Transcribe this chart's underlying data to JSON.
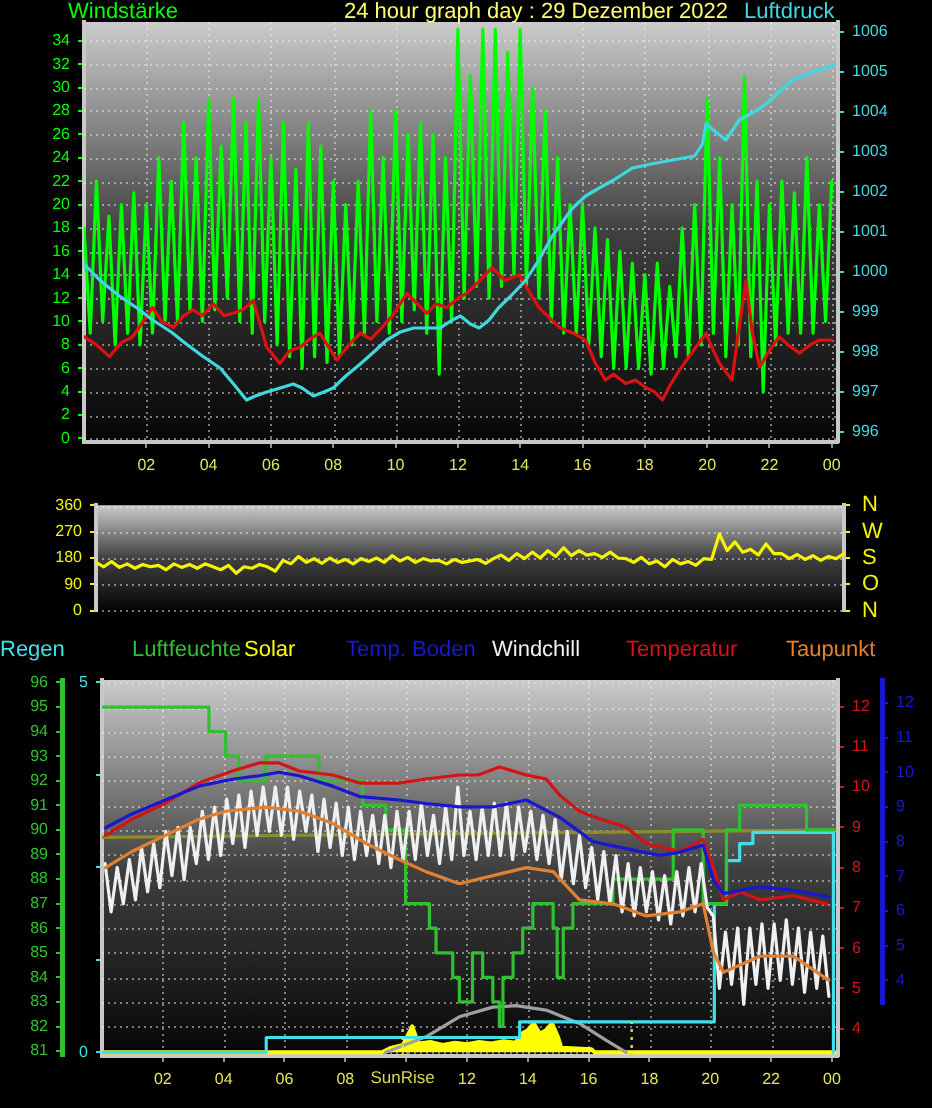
{
  "chart_data": [
    {
      "type": "line",
      "title": "24 hour graph day : 29 Dezember 2022",
      "ylabel": "Windstärke",
      "y2label": "Luftdruck",
      "xlim": [
        "2022-12-29T00:00",
        "2022-12-30T00:12"
      ],
      "xticks": [
        {
          "value": "2022-12-29T02:00",
          "label": "02"
        },
        {
          "value": "2022-12-29T04:00",
          "label": "04"
        },
        {
          "value": "2022-12-29T06:00",
          "label": "06"
        },
        {
          "value": "2022-12-29T08:00",
          "label": "08"
        },
        {
          "value": "2022-12-29T10:00",
          "label": "10"
        },
        {
          "value": "2022-12-29T12:00",
          "label": "12"
        },
        {
          "value": "2022-12-29T14:00",
          "label": "14"
        },
        {
          "value": "2022-12-29T16:00",
          "label": "16"
        },
        {
          "value": "2022-12-29T18:00",
          "label": "18"
        },
        {
          "value": "2022-12-29T20:00",
          "label": "20"
        },
        {
          "value": "2022-12-29T22:00",
          "label": "22"
        },
        {
          "value": "2022-12-30T00:00",
          "label": "00"
        }
      ],
      "ylim": [
        -0.3,
        35.6
      ],
      "yticks": [
        0,
        2,
        4,
        6,
        8,
        10,
        12,
        14,
        16,
        18,
        20,
        22,
        24,
        26,
        28,
        30,
        32,
        34
      ],
      "y2lim": [
        995.75,
        1006.25
      ],
      "y2ticks": [
        996,
        997,
        998,
        999,
        1000,
        1001,
        1002,
        1003,
        1004,
        1005,
        1006
      ],
      "grid": true,
      "marker": "none",
      "series": [
        {
          "color": "#00ff00",
          "x": [
            "2022-12-29T00:00",
            "2022-12-29T00:12",
            "2022-12-29T00:24",
            "2022-12-29T00:36",
            "2022-12-29T00:48",
            "2022-12-29T01:00",
            "2022-12-29T01:12",
            "2022-12-29T01:24",
            "2022-12-29T01:36",
            "2022-12-29T01:48",
            "2022-12-29T02:00",
            "2022-12-29T02:12",
            "2022-12-29T02:24",
            "2022-12-29T02:36",
            "2022-12-29T02:48",
            "2022-12-29T03:00",
            "2022-12-29T03:12",
            "2022-12-29T03:24",
            "2022-12-29T03:36",
            "2022-12-29T03:48",
            "2022-12-29T04:00",
            "2022-12-29T04:12",
            "2022-12-29T04:24",
            "2022-12-29T04:36",
            "2022-12-29T04:48",
            "2022-12-29T05:00",
            "2022-12-29T05:12",
            "2022-12-29T05:24",
            "2022-12-29T05:36",
            "2022-12-29T05:48",
            "2022-12-29T06:00",
            "2022-12-29T06:12",
            "2022-12-29T06:24",
            "2022-12-29T06:36",
            "2022-12-29T06:48",
            "2022-12-29T07:00",
            "2022-12-29T07:12",
            "2022-12-29T07:24",
            "2022-12-29T07:36",
            "2022-12-29T07:48",
            "2022-12-29T08:00",
            "2022-12-29T08:12",
            "2022-12-29T08:24",
            "2022-12-29T08:36",
            "2022-12-29T08:48",
            "2022-12-29T09:00",
            "2022-12-29T09:12",
            "2022-12-29T09:24",
            "2022-12-29T09:36",
            "2022-12-29T09:48",
            "2022-12-29T10:00",
            "2022-12-29T10:12",
            "2022-12-29T10:24",
            "2022-12-29T10:36",
            "2022-12-29T10:48",
            "2022-12-29T11:00",
            "2022-12-29T11:12",
            "2022-12-29T11:24",
            "2022-12-29T11:36",
            "2022-12-29T11:48",
            "2022-12-29T12:00",
            "2022-12-29T12:12",
            "2022-12-29T12:24",
            "2022-12-29T12:36",
            "2022-12-29T12:48",
            "2022-12-29T13:00",
            "2022-12-29T13:12",
            "2022-12-29T13:24",
            "2022-12-29T13:36",
            "2022-12-29T13:48",
            "2022-12-29T14:00",
            "2022-12-29T14:12",
            "2022-12-29T14:24",
            "2022-12-29T14:36",
            "2022-12-29T14:48",
            "2022-12-29T15:00",
            "2022-12-29T15:12",
            "2022-12-29T15:24",
            "2022-12-29T15:36",
            "2022-12-29T15:48",
            "2022-12-29T16:00",
            "2022-12-29T16:12",
            "2022-12-29T16:24",
            "2022-12-29T16:36",
            "2022-12-29T16:48",
            "2022-12-29T17:00",
            "2022-12-29T17:12",
            "2022-12-29T17:24",
            "2022-12-29T17:36",
            "2022-12-29T17:48",
            "2022-12-29T18:00",
            "2022-12-29T18:12",
            "2022-12-29T18:24",
            "2022-12-29T18:36",
            "2022-12-29T18:48",
            "2022-12-29T19:00",
            "2022-12-29T19:12",
            "2022-12-29T19:24",
            "2022-12-29T19:36",
            "2022-12-29T19:48",
            "2022-12-29T20:00",
            "2022-12-29T20:12",
            "2022-12-29T20:24",
            "2022-12-29T20:36",
            "2022-12-29T20:48",
            "2022-12-29T21:00",
            "2022-12-29T21:12",
            "2022-12-29T21:24",
            "2022-12-29T21:36",
            "2022-12-29T21:48",
            "2022-12-29T22:00",
            "2022-12-29T22:12",
            "2022-12-29T22:24",
            "2022-12-29T22:36",
            "2022-12-29T22:48",
            "2022-12-29T23:00",
            "2022-12-29T23:12",
            "2022-12-29T23:24",
            "2022-12-29T23:36",
            "2022-12-29T23:48",
            "2022-12-30T00:00"
          ],
          "values": [
            18,
            9,
            22,
            10,
            19,
            8,
            20,
            9,
            21,
            8,
            20,
            9,
            24,
            10,
            22,
            10,
            27,
            11,
            24,
            10,
            29,
            11,
            25,
            12,
            29,
            10,
            27,
            9,
            29,
            10,
            24,
            8,
            27,
            7,
            23,
            6,
            27,
            7,
            25,
            6.5,
            22,
            7,
            20,
            8,
            22,
            9,
            28,
            10,
            24,
            9,
            28,
            10,
            26,
            11,
            27,
            9,
            26,
            5.5,
            24,
            10,
            35,
            12,
            31,
            13,
            35,
            12,
            35,
            13,
            33,
            14,
            35,
            13,
            30,
            12,
            28,
            10,
            24,
            9,
            20,
            9,
            20,
            8,
            18,
            7,
            17,
            6,
            16,
            6,
            15,
            6,
            14,
            5.5,
            15,
            6,
            13,
            7,
            18,
            7,
            20,
            8,
            29,
            9,
            24,
            7,
            20,
            8,
            31,
            7,
            22,
            4,
            20,
            8,
            22,
            9,
            21,
            9,
            24,
            9,
            20,
            10,
            22
          ]
        },
        {
          "color": "#dd1111",
          "x": [
            "2022-12-29T00:00",
            "2022-12-29T00:24",
            "2022-12-29T00:49",
            "2022-12-29T01:12",
            "2022-12-29T01:34",
            "2022-12-29T01:54",
            "2022-12-29T02:12",
            "2022-12-29T02:30",
            "2022-12-29T02:52",
            "2022-12-29T03:12",
            "2022-12-29T03:30",
            "2022-12-29T03:48",
            "2022-12-29T04:09",
            "2022-12-29T04:30",
            "2022-12-29T04:47",
            "2022-12-29T05:06",
            "2022-12-29T05:26",
            "2022-12-29T05:52",
            "2022-12-29T06:17",
            "2022-12-29T06:36",
            "2022-12-29T06:56",
            "2022-12-29T07:15",
            "2022-12-29T07:34",
            "2022-12-29T08:07",
            "2022-12-29T08:30",
            "2022-12-29T08:52",
            "2022-12-29T09:12",
            "2022-12-29T09:30",
            "2022-12-29T09:54",
            "2022-12-29T10:22",
            "2022-12-29T10:42",
            "2022-12-29T11:00",
            "2022-12-29T11:18",
            "2022-12-29T11:39",
            "2022-12-29T12:00",
            "2022-12-29T12:17",
            "2022-12-29T12:42",
            "2022-12-29T13:06",
            "2022-12-29T13:30",
            "2022-12-29T13:58",
            "2022-12-29T14:18",
            "2022-12-29T14:36",
            "2022-12-29T15:15",
            "2022-12-29T15:42",
            "2022-12-29T16:06",
            "2022-12-29T16:24",
            "2022-12-29T16:44",
            "2022-12-29T17:00",
            "2022-12-29T17:23",
            "2022-12-29T17:42",
            "2022-12-29T18:00",
            "2022-12-29T18:18",
            "2022-12-29T18:34",
            "2022-12-29T18:48",
            "2022-12-29T19:06",
            "2022-12-29T19:30",
            "2022-12-29T19:58",
            "2022-12-29T20:12",
            "2022-12-29T20:24",
            "2022-12-29T20:48",
            "2022-12-29T21:00",
            "2022-12-29T21:15",
            "2022-12-29T21:27",
            "2022-12-29T21:41",
            "2022-12-29T22:00",
            "2022-12-29T22:18",
            "2022-12-29T22:36",
            "2022-12-29T22:58",
            "2022-12-29T23:18",
            "2022-12-29T23:36",
            "2022-12-30T00:00"
          ],
          "values": [
            8.7,
            8,
            7,
            8.2,
            8.7,
            10,
            11.2,
            10,
            9.5,
            10.5,
            11,
            10.5,
            11.5,
            10.5,
            10.7,
            11,
            11.8,
            7.8,
            6.4,
            7.5,
            7.8,
            8.5,
            9,
            6.7,
            8,
            9,
            8.5,
            9.3,
            10.5,
            12.4,
            11.5,
            10.7,
            11.5,
            11.2,
            12,
            12.4,
            13.5,
            14.6,
            13.5,
            14,
            12.5,
            11.2,
            9.5,
            9,
            8.4,
            6.5,
            5,
            5.5,
            4.7,
            5,
            4.4,
            4,
            3.3,
            4.5,
            5.8,
            7.3,
            9,
            7.5,
            6.4,
            5,
            9,
            13.5,
            9,
            6.1,
            7.5,
            8.7,
            8,
            7.3,
            8,
            8.4,
            8.4
          ]
        },
        {
          "color": "#40d8e0",
          "axis": "y2",
          "x": [
            "2022-12-29T00:00",
            "2022-12-29T00:30",
            "2022-12-29T01:08",
            "2022-12-29T01:42",
            "2022-12-29T02:12",
            "2022-12-29T02:48",
            "2022-12-29T03:17",
            "2022-12-29T03:48",
            "2022-12-29T04:22",
            "2022-12-29T04:48",
            "2022-12-29T05:13",
            "2022-12-29T05:30",
            "2022-12-29T05:52",
            "2022-12-29T06:18",
            "2022-12-29T06:43",
            "2022-12-29T07:00",
            "2022-12-29T07:22",
            "2022-12-29T07:42",
            "2022-12-29T08:00",
            "2022-12-29T08:24",
            "2022-12-29T08:52",
            "2022-12-29T09:18",
            "2022-12-29T09:43",
            "2022-12-29T10:09",
            "2022-12-29T10:35",
            "2022-12-29T11:00",
            "2022-12-29T11:26",
            "2022-12-29T11:49",
            "2022-12-29T12:05",
            "2022-12-29T12:24",
            "2022-12-29T12:41",
            "2022-12-29T13:00",
            "2022-12-29T13:18",
            "2022-12-29T13:42",
            "2022-12-29T14:11",
            "2022-12-29T14:36",
            "2022-12-29T15:02",
            "2022-12-29T15:24",
            "2022-12-29T15:41",
            "2022-12-29T16:06",
            "2022-12-29T16:32",
            "2022-12-29T17:00",
            "2022-12-29T17:36",
            "2022-12-29T18:12",
            "2022-12-29T18:54",
            "2022-12-29T19:36",
            "2022-12-29T19:51",
            "2022-12-29T19:58",
            "2022-12-29T20:17",
            "2022-12-29T20:36",
            "2022-12-29T21:02",
            "2022-12-29T21:30",
            "2022-12-29T21:54",
            "2022-12-29T22:18",
            "2022-12-29T22:45",
            "2022-12-29T23:24",
            "2022-12-29T23:48",
            "2022-12-30T00:06"
          ],
          "values": [
            1000.2,
            999.8,
            999.4,
            999.1,
            998.8,
            998.5,
            998.2,
            997.9,
            997.6,
            997.2,
            996.8,
            996.9,
            997,
            997.1,
            997.2,
            997.1,
            996.9,
            997,
            997.1,
            997.4,
            997.7,
            998,
            998.3,
            998.5,
            998.6,
            998.6,
            998.6,
            998.8,
            998.9,
            998.7,
            998.6,
            998.8,
            999.1,
            999.4,
            999.8,
            1000.3,
            1000.9,
            1001.3,
            1001.6,
            1001.9,
            1002.1,
            1002.3,
            1002.6,
            1002.7,
            1002.8,
            1002.9,
            1003.2,
            1003.7,
            1003.5,
            1003.3,
            1003.8,
            1004,
            1004.2,
            1004.5,
            1004.8,
            1005,
            1005.1,
            1005.2
          ]
        }
      ]
    },
    {
      "type": "line",
      "categories": [
        null,
        null,
        null,
        null,
        null,
        null,
        null,
        null,
        null,
        null,
        null,
        null,
        null,
        null,
        null,
        null,
        null,
        null,
        null,
        null,
        null,
        null,
        null,
        null,
        null,
        null,
        null,
        null,
        null,
        null,
        null,
        null,
        null,
        null,
        null,
        null,
        null,
        null,
        null,
        null,
        null,
        null,
        null,
        null,
        null,
        null,
        null,
        null,
        null,
        null,
        null,
        null,
        null,
        null,
        null,
        null,
        null,
        null,
        null,
        null,
        null,
        null,
        null,
        null,
        null,
        null,
        null,
        null,
        null,
        null,
        null,
        null,
        null,
        null,
        null,
        null,
        null,
        null,
        null,
        null,
        null,
        null,
        null,
        null,
        null,
        null,
        null,
        null,
        null,
        null,
        null,
        null,
        null,
        null,
        null,
        null,
        null
      ],
      "ylim": [
        0,
        360
      ],
      "yticks": [
        0,
        90,
        180,
        270,
        360
      ],
      "y2_categories": [
        "N",
        "W",
        "S",
        "O",
        "N"
      ],
      "grid": "y",
      "marker": "none",
      "series": [
        {
          "color": "#f4f400",
          "values": [
            165,
            150,
            168,
            148,
            160,
            145,
            158,
            150,
            155,
            140,
            160,
            148,
            158,
            145,
            160,
            150,
            140,
            155,
            128,
            150,
            145,
            158,
            150,
            135,
            172,
            160,
            185,
            165,
            178,
            162,
            180,
            165,
            175,
            160,
            178,
            168,
            180,
            165,
            188,
            170,
            182,
            165,
            178,
            170,
            172,
            160,
            175,
            165,
            170,
            175,
            162,
            178,
            190,
            172,
            195,
            178,
            200,
            180,
            205,
            185,
            215,
            188,
            205,
            190,
            195,
            182,
            200,
            180,
            178,
            165,
            182,
            160,
            170,
            150,
            175,
            160,
            168,
            155,
            178,
            175,
            262,
            205,
            235,
            200,
            210,
            190,
            228,
            195,
            195,
            178,
            192,
            175,
            188,
            172,
            185,
            178,
            195
          ]
        }
      ]
    },
    {
      "type": "line",
      "legend": "top",
      "xlim": [
        "2022-12-29T00:00",
        "2022-12-30T00:12"
      ],
      "xticks": [
        {
          "value": "2022-12-29T02:00",
          "label": "02"
        },
        {
          "value": "2022-12-29T04:00",
          "label": "04"
        },
        {
          "value": "2022-12-29T06:00",
          "label": "06"
        },
        {
          "value": "2022-12-29T08:00",
          "label": "08"
        },
        {
          "value": "2022-12-29T10:00",
          "label": null
        },
        {
          "value": "2022-12-29T12:00",
          "label": "12"
        },
        {
          "value": "2022-12-29T14:00",
          "label": "14"
        },
        {
          "value": "2022-12-29T16:00",
          "label": "16"
        },
        {
          "value": "2022-12-29T18:00",
          "label": "18"
        },
        {
          "value": "2022-12-29T20:00",
          "label": "20"
        },
        {
          "value": "2022-12-29T22:00",
          "label": "22"
        },
        {
          "value": "2022-12-30T00:00",
          "label": "00"
        }
      ],
      "ylim": [
        80.8,
        96.1
      ],
      "yticks": [
        81,
        82,
        83,
        84,
        85,
        86,
        87,
        88,
        89,
        90,
        91,
        92,
        93,
        94,
        95,
        96
      ],
      "y2lim": [
        3.32,
        12.66
      ],
      "y2ticks": [
        4,
        5,
        6,
        7,
        8,
        9,
        10,
        11,
        12
      ],
      "y3lim": [
        -0.05,
        5.03
      ],
      "y3ticks": [
        0,
        {
          "value": 1.25,
          "label": null
        },
        {
          "value": 2.5,
          "label": null
        },
        {
          "value": 3.75,
          "label": null
        },
        5
      ],
      "grid": true,
      "marker": "none",
      "ref_lines": [
        {
          "axis": "x",
          "value": "2022-12-29T09:53",
          "label": "SunRise",
          "color": "#d8d850",
          "line_style": "dotted"
        },
        {
          "axis": "x",
          "value": "2022-12-29T17:25",
          "color": "#d8d850",
          "line_style": "dotted"
        }
      ],
      "series": [
        {
          "name": "Regen",
          "type": "step",
          "axis": "y3",
          "color": "#40e0e8",
          "x": [
            "2022-12-29T00:00",
            "2022-12-29T05:24",
            "2022-12-29T13:44",
            "2022-12-29T20:08",
            "2022-12-29T20:32",
            "2022-12-29T20:58",
            "2022-12-29T21:24",
            "2022-12-30T00:03"
          ],
          "values": [
            0,
            0.2,
            0.41,
            2,
            2.59,
            2.82,
            2.97,
            0
          ]
        },
        {
          "name": "Luftfeuchte",
          "type": "step",
          "color": "#30c030",
          "x": [
            "2022-12-29T00:00",
            "2022-12-29T03:31",
            "2022-12-29T04:04",
            "2022-12-29T04:30",
            "2022-12-29T05:23",
            "2022-12-29T07:08",
            "2022-12-29T08:34",
            "2022-12-29T09:20",
            "2022-12-29T09:59",
            "2022-12-29T10:46",
            "2022-12-29T10:59",
            "2022-12-29T11:32",
            "2022-12-29T11:45",
            "2022-12-29T12:11",
            "2022-12-29T12:31",
            "2022-12-29T12:51",
            "2022-12-29T13:04",
            "2022-12-29T13:11",
            "2022-12-29T13:31",
            "2022-12-29T13:50",
            "2022-12-29T14:10",
            "2022-12-29T14:50",
            "2022-12-29T14:58",
            "2022-12-29T15:10",
            "2022-12-29T15:29",
            "2022-12-29T16:48",
            "2022-12-29T18:47",
            "2022-12-29T19:46",
            "2022-12-29T20:32",
            "2022-12-29T20:58",
            "2022-12-29T23:10",
            "2022-12-30T00:03"
          ],
          "values": [
            95,
            94,
            93,
            92,
            93,
            92,
            91,
            90,
            87,
            86,
            85,
            84,
            83,
            85,
            84,
            83,
            82,
            84,
            85,
            86,
            87,
            86,
            84,
            86,
            87,
            88,
            90,
            87,
            90,
            91,
            90,
            90
          ]
        },
        {
          "name": "Solar",
          "type": "area",
          "axis": "y3",
          "color": "#ffff00",
          "x": [
            "2022-12-29T00:00",
            "2022-12-29T09:12",
            "2022-12-29T09:30",
            "2022-12-29T09:54",
            "2022-12-29T10:12",
            "2022-12-29T10:24",
            "2022-12-29T10:48",
            "2022-12-29T11:12",
            "2022-12-29T11:36",
            "2022-12-29T12:00",
            "2022-12-29T12:24",
            "2022-12-29T12:48",
            "2022-12-29T13:12",
            "2022-12-29T13:36",
            "2022-12-29T13:48",
            "2022-12-29T14:00",
            "2022-12-29T14:12",
            "2022-12-29T14:24",
            "2022-12-29T14:36",
            "2022-12-29T14:48",
            "2022-12-29T15:00",
            "2022-12-29T15:06",
            "2022-12-29T16:06",
            "2022-12-29T16:12",
            "2022-12-30T00:06"
          ],
          "values": [
            0,
            0,
            0.06,
            0.1,
            0.35,
            0.12,
            0.14,
            0.1,
            0.13,
            0.11,
            0.14,
            0.12,
            0.15,
            0.13,
            0.25,
            0.3,
            0.39,
            0.25,
            0.3,
            0.39,
            0.2,
            0.06,
            0.04,
            0,
            0
          ]
        },
        {
          "name": "Windchill",
          "axis": "y2",
          "color": "#f0f0f0",
          "x": [
            "2022-12-29T00:06",
            "2022-12-29T00:18",
            "2022-12-29T00:30",
            "2022-12-29T00:42",
            "2022-12-29T00:54",
            "2022-12-29T01:06",
            "2022-12-29T01:18",
            "2022-12-29T01:30",
            "2022-12-29T01:42",
            "2022-12-29T01:54",
            "2022-12-29T02:06",
            "2022-12-29T02:18",
            "2022-12-29T02:30",
            "2022-12-29T02:42",
            "2022-12-29T02:54",
            "2022-12-29T03:06",
            "2022-12-29T03:18",
            "2022-12-29T03:30",
            "2022-12-29T03:42",
            "2022-12-29T03:54",
            "2022-12-29T04:06",
            "2022-12-29T04:18",
            "2022-12-29T04:30",
            "2022-12-29T04:42",
            "2022-12-29T04:54",
            "2022-12-29T05:06",
            "2022-12-29T05:18",
            "2022-12-29T05:30",
            "2022-12-29T05:42",
            "2022-12-29T05:54",
            "2022-12-29T06:06",
            "2022-12-29T06:18",
            "2022-12-29T06:30",
            "2022-12-29T06:42",
            "2022-12-29T06:54",
            "2022-12-29T07:06",
            "2022-12-29T07:18",
            "2022-12-29T07:30",
            "2022-12-29T07:42",
            "2022-12-29T07:54",
            "2022-12-29T08:06",
            "2022-12-29T08:18",
            "2022-12-29T08:30",
            "2022-12-29T08:42",
            "2022-12-29T08:54",
            "2022-12-29T09:06",
            "2022-12-29T09:18",
            "2022-12-29T09:30",
            "2022-12-29T09:42",
            "2022-12-29T09:54",
            "2022-12-29T10:06",
            "2022-12-29T10:18",
            "2022-12-29T10:30",
            "2022-12-29T10:42",
            "2022-12-29T10:54",
            "2022-12-29T11:06",
            "2022-12-29T11:18",
            "2022-12-29T11:30",
            "2022-12-29T11:42",
            "2022-12-29T11:54",
            "2022-12-29T12:06",
            "2022-12-29T12:18",
            "2022-12-29T12:30",
            "2022-12-29T12:42",
            "2022-12-29T12:54",
            "2022-12-29T13:06",
            "2022-12-29T13:18",
            "2022-12-29T13:30",
            "2022-12-29T13:42",
            "2022-12-29T13:54",
            "2022-12-29T14:06",
            "2022-12-29T14:18",
            "2022-12-29T14:30",
            "2022-12-29T14:42",
            "2022-12-29T14:54",
            "2022-12-29T15:06",
            "2022-12-29T15:18",
            "2022-12-29T15:30",
            "2022-12-29T15:42",
            "2022-12-29T15:54",
            "2022-12-29T16:06",
            "2022-12-29T16:18",
            "2022-12-29T16:30",
            "2022-12-29T16:42",
            "2022-12-29T16:54",
            "2022-12-29T17:06",
            "2022-12-29T17:18",
            "2022-12-29T17:30",
            "2022-12-29T17:42",
            "2022-12-29T17:54",
            "2022-12-29T18:06",
            "2022-12-29T18:18",
            "2022-12-29T18:30",
            "2022-12-29T18:42",
            "2022-12-29T18:54",
            "2022-12-29T19:06",
            "2022-12-29T19:18",
            "2022-12-29T19:30",
            "2022-12-29T19:42",
            "2022-12-29T19:54",
            "2022-12-29T20:06",
            "2022-12-29T20:18",
            "2022-12-29T20:30",
            "2022-12-29T20:42",
            "2022-12-29T20:54",
            "2022-12-29T21:06",
            "2022-12-29T21:18",
            "2022-12-29T21:30",
            "2022-12-29T21:42",
            "2022-12-29T21:54",
            "2022-12-29T22:06",
            "2022-12-29T22:18",
            "2022-12-29T22:30",
            "2022-12-29T22:42",
            "2022-12-29T22:54",
            "2022-12-29T23:06",
            "2022-12-29T23:18",
            "2022-12-29T23:30",
            "2022-12-29T23:42",
            "2022-12-29T23:54"
          ],
          "values": [
            8.1,
            6.9,
            8,
            7.1,
            8.2,
            7.2,
            8.5,
            7.4,
            8.6,
            7.5,
            8.9,
            7.8,
            9,
            7.7,
            9,
            8.1,
            9.4,
            8.2,
            9.5,
            8.3,
            9.7,
            8.6,
            9.8,
            8.5,
            9.9,
            8.8,
            10,
            8.9,
            10,
            8.8,
            10,
            8.7,
            9.9,
            8.9,
            9.8,
            8.4,
            9.7,
            8.5,
            9.6,
            8.3,
            9.5,
            8.2,
            9.4,
            8.3,
            9.3,
            8.1,
            9.3,
            8,
            9.4,
            8.2,
            9.4,
            8.2,
            9.6,
            8.3,
            9.3,
            8.1,
            9.5,
            8.2,
            10,
            8.3,
            9.4,
            8.2,
            9.5,
            8.3,
            9.6,
            8.3,
            9.6,
            8.2,
            9.5,
            8.4,
            9.4,
            8.2,
            9.3,
            8.1,
            9.2,
            7.7,
            8.9,
            7.6,
            8.8,
            7.5,
            8.5,
            7.2,
            8.4,
            7.1,
            8.3,
            6.9,
            8.1,
            6.8,
            8,
            6.9,
            7.9,
            6.7,
            7.8,
            6.6,
            7.9,
            6.8,
            8,
            6.9,
            8.1,
            7,
            6.8,
            5,
            6.4,
            5.1,
            6.5,
            4.6,
            6.5,
            5.1,
            6.6,
            5,
            6.6,
            5.2,
            6.7,
            5.1,
            6.5,
            4.9,
            6.4,
            5,
            6.3,
            4.8
          ]
        },
        {
          "name": "Temperatur",
          "axis": "y2",
          "color": "#d41414",
          "x": [
            "2022-12-29T00:07",
            "2022-12-29T00:59",
            "2022-12-29T02:05",
            "2022-12-29T03:11",
            "2022-12-29T04:17",
            "2022-12-29T05:10",
            "2022-12-29T05:49",
            "2022-12-29T06:29",
            "2022-12-29T07:35",
            "2022-12-29T08:28",
            "2022-12-29T09:46",
            "2022-12-29T10:39",
            "2022-12-29T11:45",
            "2022-12-29T12:22",
            "2022-12-29T13:04",
            "2022-12-29T13:57",
            "2022-12-29T14:36",
            "2022-12-29T15:03",
            "2022-12-29T15:42",
            "2022-12-29T16:24",
            "2022-12-29T17:14",
            "2022-12-29T17:54",
            "2022-12-29T19:00",
            "2022-12-29T19:46",
            "2022-12-29T20:06",
            "2022-12-29T20:26",
            "2022-12-29T20:59",
            "2022-12-29T21:38",
            "2022-12-29T22:44",
            "2022-12-29T23:50"
          ],
          "values": [
            8.8,
            9.2,
            9.6,
            10.1,
            10.4,
            10.6,
            10.6,
            10.4,
            10.3,
            10.1,
            10.1,
            10.2,
            10.3,
            10.3,
            10.5,
            10.3,
            10.2,
            9.8,
            9.4,
            9.2,
            9,
            8.6,
            8.4,
            8.7,
            8,
            7.2,
            7.4,
            7.2,
            7.3,
            7.1
          ]
        },
        {
          "name": "Taupunkt",
          "axis": "y2",
          "color": "#e08030",
          "x": [
            "2022-12-29T00:07",
            "2022-12-29T00:59",
            "2022-12-29T02:05",
            "2022-12-29T03:11",
            "2022-12-29T04:04",
            "2022-12-29T05:23",
            "2022-12-29T06:29",
            "2022-12-29T07:35",
            "2022-12-29T08:41",
            "2022-12-29T09:46",
            "2022-12-29T10:39",
            "2022-12-29T11:45",
            "2022-12-29T12:51",
            "2022-12-29T13:57",
            "2022-12-29T14:50",
            "2022-12-29T15:42",
            "2022-12-29T16:48",
            "2022-12-29T17:54",
            "2022-12-29T19:00",
            "2022-12-29T19:46",
            "2022-12-29T20:06",
            "2022-12-29T20:26",
            "2022-12-29T21:38",
            "2022-12-29T22:44",
            "2022-12-29T23:54"
          ],
          "values": [
            8,
            8.4,
            8.8,
            9.2,
            9.4,
            9.5,
            9.4,
            9.1,
            8.6,
            8.2,
            7.9,
            7.6,
            7.8,
            8,
            7.9,
            7.2,
            7.1,
            6.8,
            6.9,
            7.1,
            5.9,
            5.4,
            5.8,
            5.8,
            5.2
          ]
        },
        {
          "color": "#8c8c2a",
          "x": [
            "2022-12-29T00:00",
            "2022-12-30T00:06"
          ],
          "values": [
            89.7,
            90
          ]
        },
        {
          "axis": "y3",
          "color": "#a0a0a0",
          "x": [
            "2022-12-29T09:20",
            "2022-12-29T10:39",
            "2022-12-29T11:45",
            "2022-12-29T12:51",
            "2022-12-29T13:37",
            "2022-12-29T14:36",
            "2022-12-29T15:42",
            "2022-12-29T16:35",
            "2022-12-29T17:14"
          ],
          "values": [
            0,
            0.21,
            0.48,
            0.61,
            0.63,
            0.57,
            0.39,
            0.16,
            0
          ]
        }
      ]
    },
    {
      "type": "line",
      "legend": "top",
      "tick_labels": "y",
      "xlim": [
        "2022-12-29T00:00",
        "2022-12-30T00:12"
      ],
      "ylim": [
        3.32,
        12.66
      ],
      "yticks": [
        4,
        5,
        6,
        7,
        8,
        9,
        10,
        11,
        12
      ],
      "marker": "none",
      "series": [
        {
          "name": "Temp. Boden",
          "color": "#1818d0",
          "x": [
            "2022-12-29T00:07",
            "2022-12-29T00:59",
            "2022-12-29T02:05",
            "2022-12-29T03:11",
            "2022-12-29T04:17",
            "2022-12-29T05:10",
            "2022-12-29T05:49",
            "2022-12-29T06:29",
            "2022-12-29T07:35",
            "2022-12-29T08:28",
            "2022-12-29T09:46",
            "2022-12-29T10:39",
            "2022-12-29T11:45",
            "2022-12-29T12:51",
            "2022-12-29T13:57",
            "2022-12-29T15:03",
            "2022-12-29T16:09",
            "2022-12-29T17:14",
            "2022-12-29T18:21",
            "2022-12-29T19:00",
            "2022-12-29T19:46",
            "2022-12-29T20:06",
            "2022-12-29T20:26",
            "2022-12-29T21:38",
            "2022-12-29T22:44",
            "2022-12-29T23:54"
          ],
          "values": [
            8.4,
            8.8,
            9.2,
            9.6,
            9.8,
            9.9,
            10,
            9.9,
            9.6,
            9.3,
            9.2,
            9.1,
            9,
            9,
            9.2,
            8.7,
            8,
            7.8,
            7.6,
            7.7,
            7.9,
            6.9,
            6.5,
            6.7,
            6.6,
            6.4
          ]
        }
      ]
    }
  ]
}
